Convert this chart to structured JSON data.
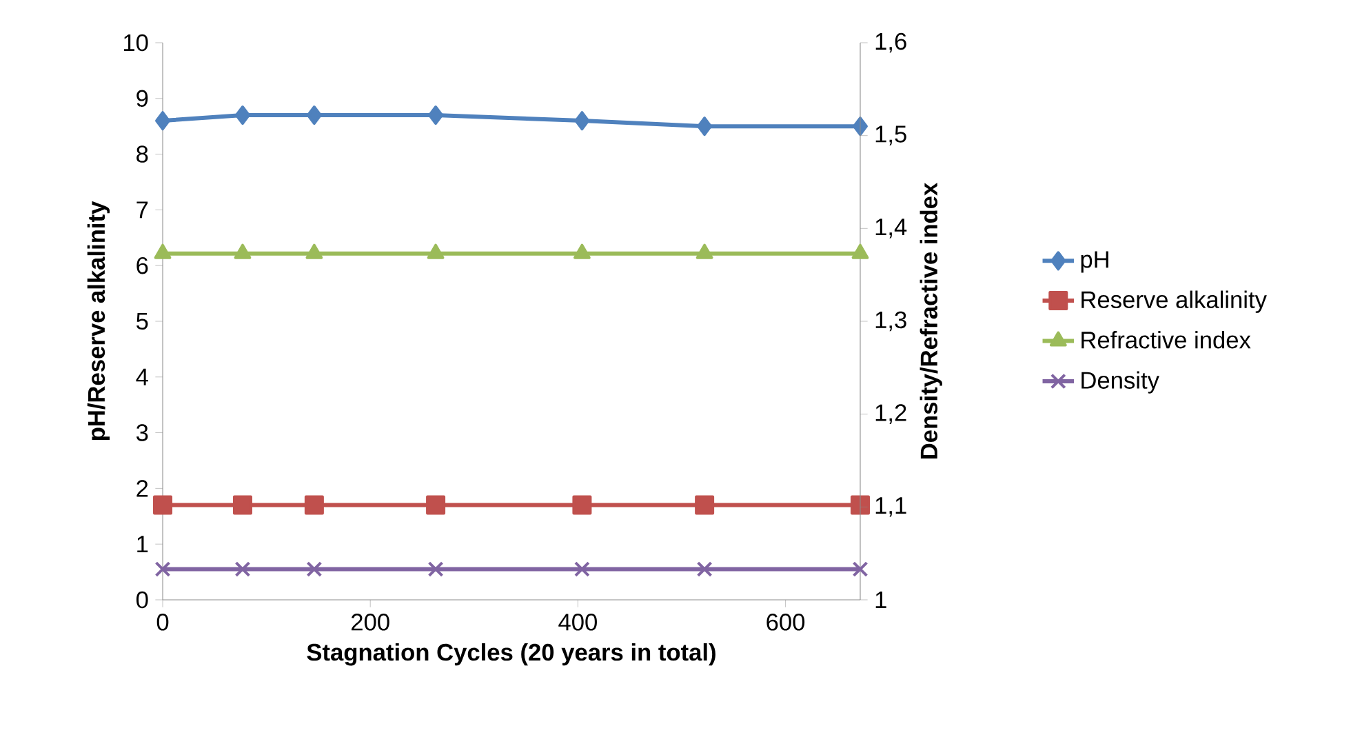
{
  "chart_data": {
    "type": "line",
    "xlabel": "Stagnation Cycles (20 years in total)",
    "ylabel": "pH/Reserve alkalinity",
    "y2label": "Density/Refractive index",
    "x": [
      0,
      77,
      146,
      263,
      404,
      522,
      672
    ],
    "xlim": [
      0,
      672
    ],
    "xticks": [
      0,
      200,
      400,
      600
    ],
    "ylim": [
      0,
      10
    ],
    "yticks": [
      0,
      1,
      2,
      3,
      4,
      5,
      6,
      7,
      8,
      9,
      10
    ],
    "y2lim": [
      1,
      1.6
    ],
    "y2ticks": [
      1,
      {
        "value": 1.1,
        "label": "1,1"
      },
      {
        "value": 1.2,
        "label": "1,2"
      },
      {
        "value": 1.3,
        "label": "1,3"
      },
      {
        "value": 1.4,
        "label": "1,4"
      },
      {
        "value": 1.5,
        "label": "1,5"
      },
      {
        "value": 1.6,
        "label": "1,6"
      }
    ],
    "legend": "right",
    "grid": false,
    "series": [
      {
        "name": "pH",
        "color": "#4f81bd",
        "marker": "diamond",
        "values": [
          8.6,
          8.7,
          8.7,
          8.7,
          8.6,
          8.5,
          8.5
        ]
      },
      {
        "name": "Reserve alkalinity",
        "color": "#c0504d",
        "marker": "square",
        "values": [
          1.7,
          1.7,
          1.7,
          1.7,
          1.7,
          1.7,
          1.7
        ]
      },
      {
        "name": "Refractive index",
        "color": "#9bbb59",
        "marker": "triangle",
        "axis": "y2",
        "values": [
          1.373,
          1.373,
          1.373,
          1.373,
          1.373,
          1.373,
          1.373
        ]
      },
      {
        "name": "Density",
        "color": "#8064a2",
        "marker": "cross",
        "axis": "y2",
        "values": [
          1.033,
          1.033,
          1.033,
          1.033,
          1.033,
          1.033,
          1.033
        ]
      }
    ]
  }
}
